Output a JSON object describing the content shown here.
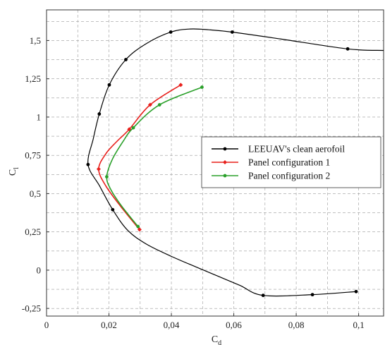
{
  "chart_data": {
    "type": "line",
    "title": "",
    "xlabel": "C",
    "xlabel_sub": "d",
    "ylabel": "C",
    "ylabel_sub": "l",
    "xlim": [
      0,
      0.108
    ],
    "ylim": [
      -0.3,
      1.7
    ],
    "xticks": [
      {
        "v": 0,
        "label": "0"
      },
      {
        "v": 0.02,
        "label": "0,02"
      },
      {
        "v": 0.04,
        "label": "0,04"
      },
      {
        "v": 0.06,
        "label": "0,06"
      },
      {
        "v": 0.08,
        "label": "0,08"
      },
      {
        "v": 0.1,
        "label": "0,1"
      }
    ],
    "yticks": [
      {
        "v": -0.25,
        "label": "-0,25"
      },
      {
        "v": 0,
        "label": "0"
      },
      {
        "v": 0.25,
        "label": "0,25"
      },
      {
        "v": 0.5,
        "label": "0,5"
      },
      {
        "v": 0.75,
        "label": "0,75"
      },
      {
        "v": 1,
        "label": "1"
      },
      {
        "v": 1.25,
        "label": "1,25"
      },
      {
        "v": 1.5,
        "label": "1,5"
      }
    ],
    "grid": true,
    "legend_position": "center-right",
    "series": [
      {
        "name": "LEEUAV's clean aerofoil",
        "color": "#000000",
        "marker_points": [
          [
            0.0992,
            -0.14
          ],
          [
            0.0852,
            -0.16
          ],
          [
            0.0694,
            -0.165
          ],
          [
            0.0212,
            0.395
          ],
          [
            0.0133,
            0.69
          ],
          [
            0.0169,
            1.02
          ],
          [
            0.0201,
            1.21
          ],
          [
            0.0254,
            1.375
          ],
          [
            0.0398,
            1.555
          ],
          [
            0.0595,
            1.555
          ],
          [
            0.0965,
            1.445
          ]
        ],
        "curve": [
          [
            0.0992,
            -0.14
          ],
          [
            0.0852,
            -0.16
          ],
          [
            0.0694,
            -0.165
          ],
          [
            0.062,
            -0.1
          ],
          [
            0.055,
            -0.04
          ],
          [
            0.048,
            0.02
          ],
          [
            0.04,
            0.09
          ],
          [
            0.032,
            0.17
          ],
          [
            0.026,
            0.26
          ],
          [
            0.0212,
            0.395
          ],
          [
            0.017,
            0.55
          ],
          [
            0.0133,
            0.69
          ],
          [
            0.015,
            0.86
          ],
          [
            0.0169,
            1.02
          ],
          [
            0.0201,
            1.21
          ],
          [
            0.0254,
            1.375
          ],
          [
            0.032,
            1.48
          ],
          [
            0.0398,
            1.555
          ],
          [
            0.046,
            1.575
          ],
          [
            0.052,
            1.57
          ],
          [
            0.0595,
            1.555
          ],
          [
            0.075,
            1.51
          ],
          [
            0.0965,
            1.445
          ],
          [
            0.108,
            1.435
          ]
        ]
      },
      {
        "name": "Panel configuration 1",
        "color": "#e8201c",
        "marker_points": [
          [
            0.0298,
            0.265
          ],
          [
            0.0167,
            0.66
          ],
          [
            0.0265,
            0.92
          ],
          [
            0.0332,
            1.08
          ],
          [
            0.043,
            1.21
          ]
        ],
        "curve": [
          [
            0.0298,
            0.265
          ],
          [
            0.024,
            0.41
          ],
          [
            0.019,
            0.55
          ],
          [
            0.0167,
            0.66
          ],
          [
            0.019,
            0.76
          ],
          [
            0.0225,
            0.84
          ],
          [
            0.0265,
            0.92
          ],
          [
            0.0332,
            1.08
          ],
          [
            0.043,
            1.21
          ]
        ]
      },
      {
        "name": "Panel configuration 2",
        "color": "#2aa02a",
        "marker_points": [
          [
            0.0293,
            0.285
          ],
          [
            0.0193,
            0.61
          ],
          [
            0.0278,
            0.93
          ],
          [
            0.0362,
            1.08
          ],
          [
            0.0498,
            1.195
          ]
        ],
        "curve": [
          [
            0.0293,
            0.285
          ],
          [
            0.024,
            0.42
          ],
          [
            0.0205,
            0.53
          ],
          [
            0.0193,
            0.61
          ],
          [
            0.021,
            0.72
          ],
          [
            0.0245,
            0.84
          ],
          [
            0.0278,
            0.93
          ],
          [
            0.0362,
            1.08
          ],
          [
            0.0498,
            1.195
          ]
        ]
      }
    ]
  }
}
